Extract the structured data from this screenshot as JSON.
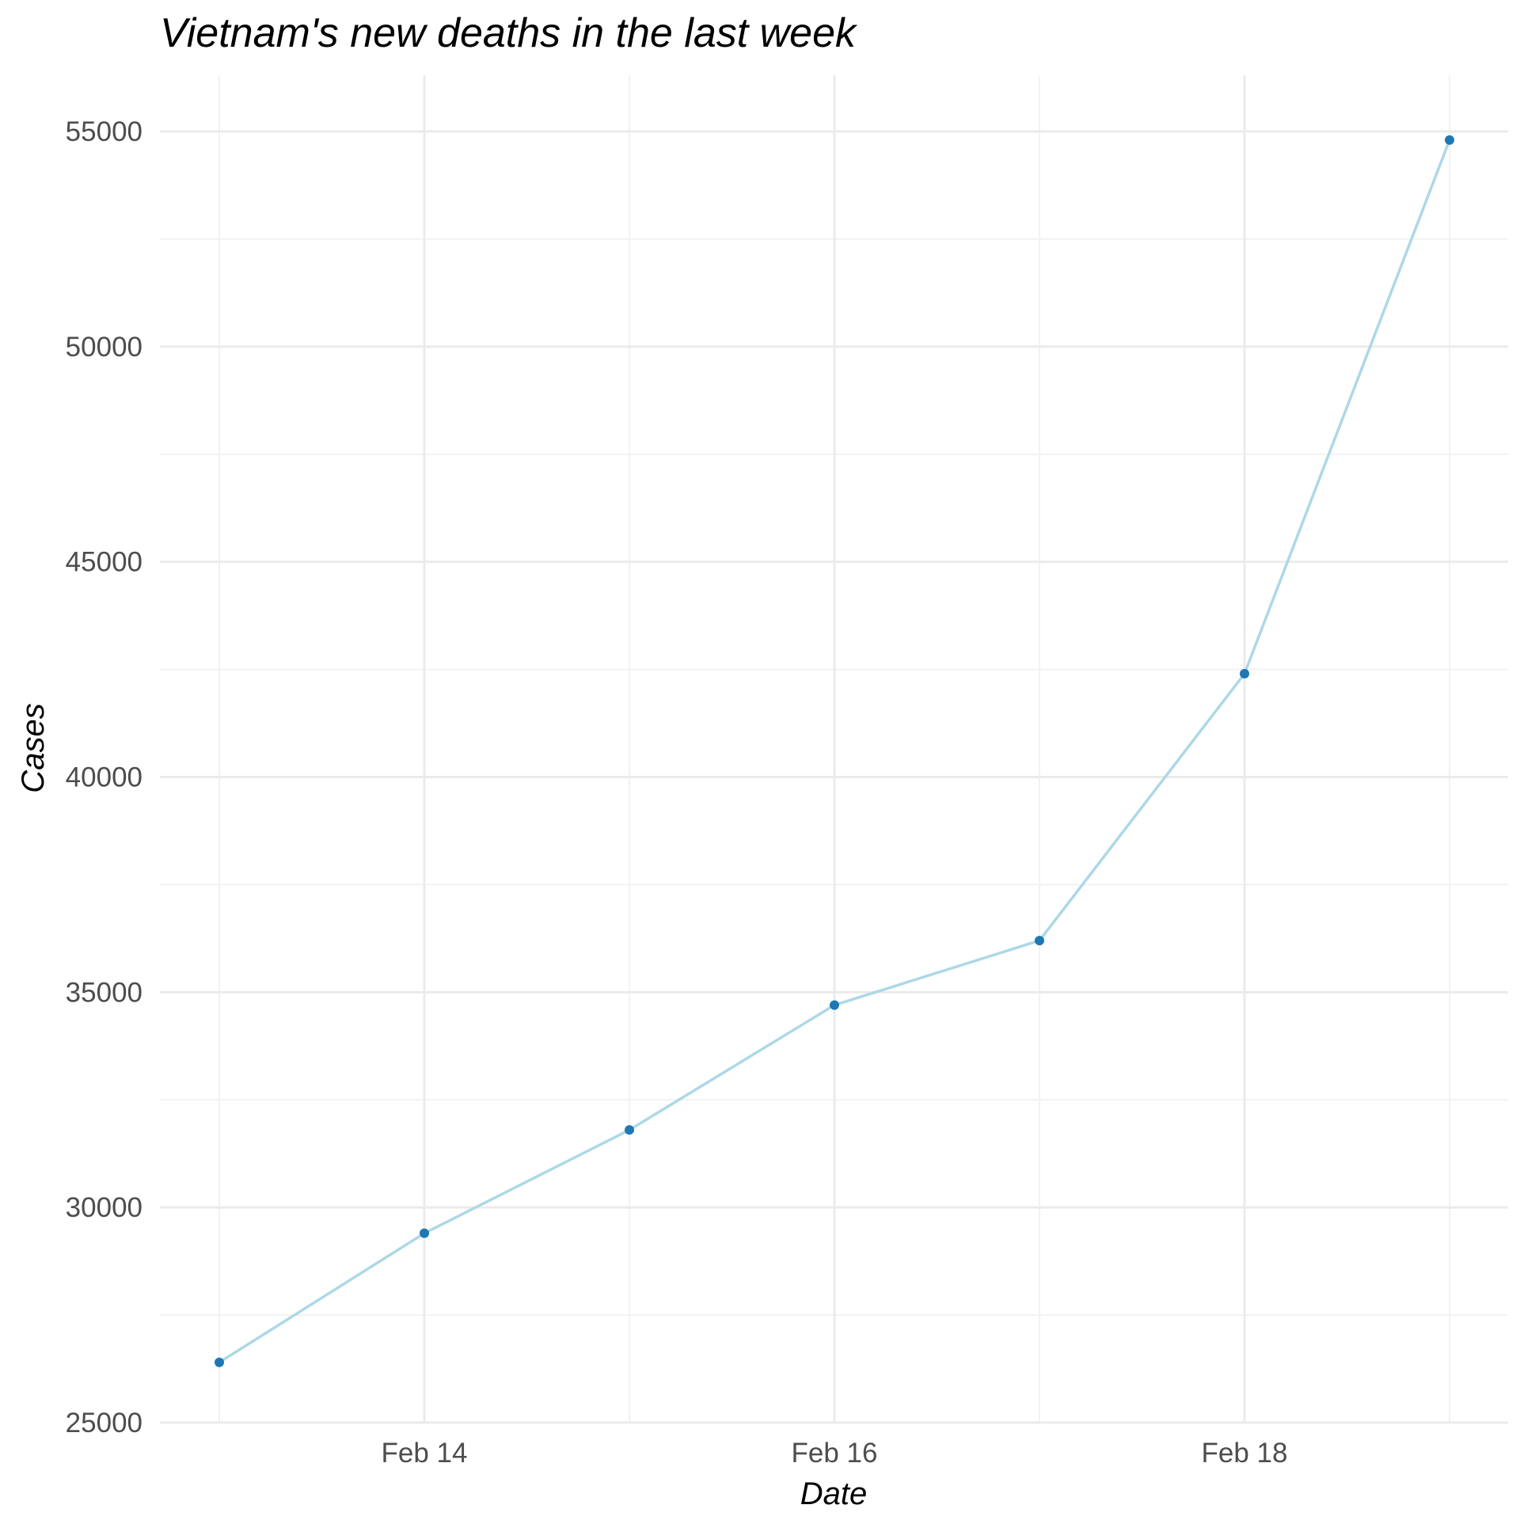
{
  "chart_data": {
    "type": "line",
    "title": "Vietnam's new deaths in the last week",
    "xlabel": "Date",
    "ylabel": "Cases",
    "x": [
      "2022-02-13",
      "2022-02-14",
      "2022-02-15",
      "2022-02-16",
      "2022-02-17",
      "2022-02-18",
      "2022-02-19"
    ],
    "values": [
      26400,
      29400,
      31800,
      34700,
      36200,
      42400,
      54800
    ],
    "x_ticks": [
      {
        "label": "Feb 14",
        "x": "2022-02-14"
      },
      {
        "label": "Feb 16",
        "x": "2022-02-16"
      },
      {
        "label": "Feb 18",
        "x": "2022-02-18"
      }
    ],
    "y_ticks": [
      25000,
      30000,
      35000,
      40000,
      45000,
      50000,
      55000
    ],
    "xlim": [
      "2022-02-12",
      "2022-02-19"
    ],
    "ylim": [
      25000,
      55000
    ],
    "grid": true,
    "colors": {
      "line": "#add8e6",
      "point": "#1f77b4",
      "grid_major": "#ebebeb",
      "grid_minor": "#f2f2f2"
    }
  }
}
